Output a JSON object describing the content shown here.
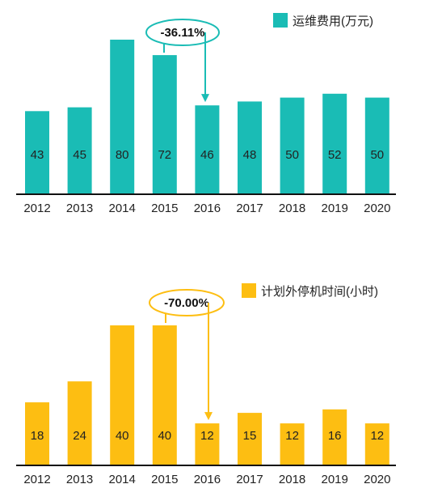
{
  "chart_data": [
    {
      "type": "bar",
      "categories": [
        "2012",
        "2013",
        "2014",
        "2015",
        "2016",
        "2017",
        "2018",
        "2019",
        "2020"
      ],
      "series": [
        {
          "name": "运维费用(万元)",
          "values": [
            43,
            45,
            80,
            72,
            46,
            48,
            50,
            52,
            50
          ]
        }
      ],
      "ylim": [
        0,
        80
      ],
      "grid": false,
      "legend": "top-right",
      "color": "#1ABCB5",
      "annotation": {
        "text": "-36.11%",
        "from": "2015",
        "to": "2016"
      }
    },
    {
      "type": "bar",
      "categories": [
        "2012",
        "2013",
        "2014",
        "2015",
        "2016",
        "2017",
        "2018",
        "2019",
        "2020"
      ],
      "series": [
        {
          "name": "计划外停机时间(小时)",
          "values": [
            18,
            24,
            40,
            40,
            12,
            15,
            12,
            16,
            12
          ]
        }
      ],
      "ylim": [
        0,
        40
      ],
      "grid": false,
      "legend": "top-right",
      "color": "#FDBE12",
      "annotation": {
        "text": "-70.00%",
        "from": "2015",
        "to": "2016"
      }
    }
  ]
}
